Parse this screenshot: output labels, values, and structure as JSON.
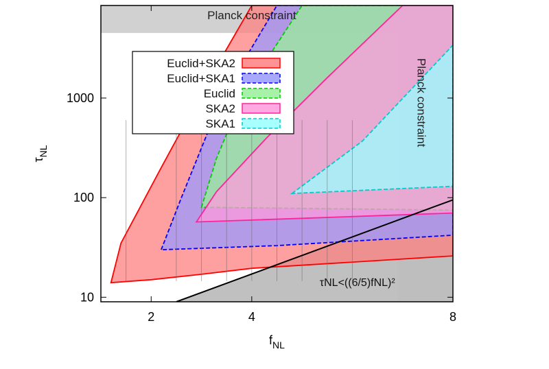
{
  "chart_data": {
    "type": "area",
    "xlabel": "f_NL",
    "ylabel": "τ_NL",
    "x_scale": "linear",
    "y_scale": "log",
    "xlim": [
      1,
      8
    ],
    "ylim": [
      9,
      8500
    ],
    "x_ticks": [
      2,
      4,
      8
    ],
    "y_ticks": [
      10,
      100,
      1000
    ],
    "grid": false,
    "legend_placement": "top-left",
    "legend": [
      {
        "name": "Euclid+SKA2",
        "color": "#ff8080",
        "line": "#ff0000",
        "dash": false
      },
      {
        "name": "Euclid+SKA1",
        "color": "#9999ff",
        "line": "#0000ff",
        "dash": true
      },
      {
        "name": "Euclid",
        "color": "#99ee99",
        "line": "#00cc00",
        "dash": true
      },
      {
        "name": "SKA2",
        "color": "#ff99dd",
        "line": "#ff2299",
        "dash": false
      },
      {
        "name": "SKA1",
        "color": "#99ffff",
        "line": "#00cccc",
        "dash": true
      }
    ],
    "series": [
      {
        "name": "Euclid+SKA2",
        "color": "#ff8080",
        "line": "#ff0000",
        "dash": false,
        "points": [
          [
            1.2,
            14
          ],
          [
            1.4,
            35
          ],
          [
            2.2,
            200
          ],
          [
            3.2,
            1700
          ],
          [
            4.0,
            8500
          ],
          [
            8,
            8500
          ],
          [
            8,
            26
          ],
          [
            4,
            19.5
          ],
          [
            3.0,
            17
          ],
          [
            2.0,
            15
          ],
          [
            1.2,
            14
          ]
        ]
      },
      {
        "name": "Euclid+SKA1",
        "color": "#9999ff",
        "line": "#0000ff",
        "dash": true,
        "points": [
          [
            2.2,
            30
          ],
          [
            2.6,
            100
          ],
          [
            3.4,
            1000
          ],
          [
            4.5,
            8500
          ],
          [
            8,
            8500
          ],
          [
            8,
            42
          ],
          [
            4.5,
            33
          ],
          [
            2.2,
            30
          ]
        ]
      },
      {
        "name": "Euclid",
        "color": "#99ee99",
        "line": "#00cc00",
        "dash": true,
        "points": [
          [
            3.0,
            80
          ],
          [
            3.3,
            250
          ],
          [
            3.8,
            1000
          ],
          [
            5.0,
            8500
          ],
          [
            8,
            8500
          ],
          [
            8,
            75
          ],
          [
            3.0,
            80
          ]
        ]
      },
      {
        "name": "SKA2",
        "color": "#ff99dd",
        "line": "#ff2299",
        "dash": false,
        "points": [
          [
            2.9,
            57
          ],
          [
            3.3,
            115
          ],
          [
            4.3,
            400
          ],
          [
            5.5,
            1600
          ],
          [
            7.0,
            8500
          ],
          [
            8,
            8500
          ],
          [
            8,
            70
          ],
          [
            5.0,
            62
          ],
          [
            2.9,
            57
          ]
        ]
      },
      {
        "name": "SKA1",
        "color": "#99ffff",
        "line": "#00cccc",
        "dash": true,
        "points": [
          [
            4.8,
            110
          ],
          [
            6.2,
            370
          ],
          [
            8,
            3400
          ],
          [
            8,
            130
          ],
          [
            4.8,
            110
          ]
        ]
      }
    ],
    "constraints": [
      {
        "label": "Planck constraint",
        "kind": "tau_upper",
        "value": 4500,
        "color": "#cccccc"
      },
      {
        "label": "Planck constraint",
        "kind": "f_upper",
        "value": 6.9,
        "color": "#cccccc"
      }
    ],
    "bound_line": {
      "label": "τNL<((6/5)fNL)²",
      "points": [
        [
          2.5,
          9
        ],
        [
          8,
          95
        ]
      ],
      "color": "#000000"
    },
    "annotations": [
      "Planck constraint",
      "Planck constraint",
      "τNL<((6/5)fNL)²"
    ],
    "vertical_marker_x": [
      1.5,
      2.5,
      3.0,
      3.5,
      4.0,
      4.5,
      5.0,
      5.5,
      6.0
    ]
  }
}
